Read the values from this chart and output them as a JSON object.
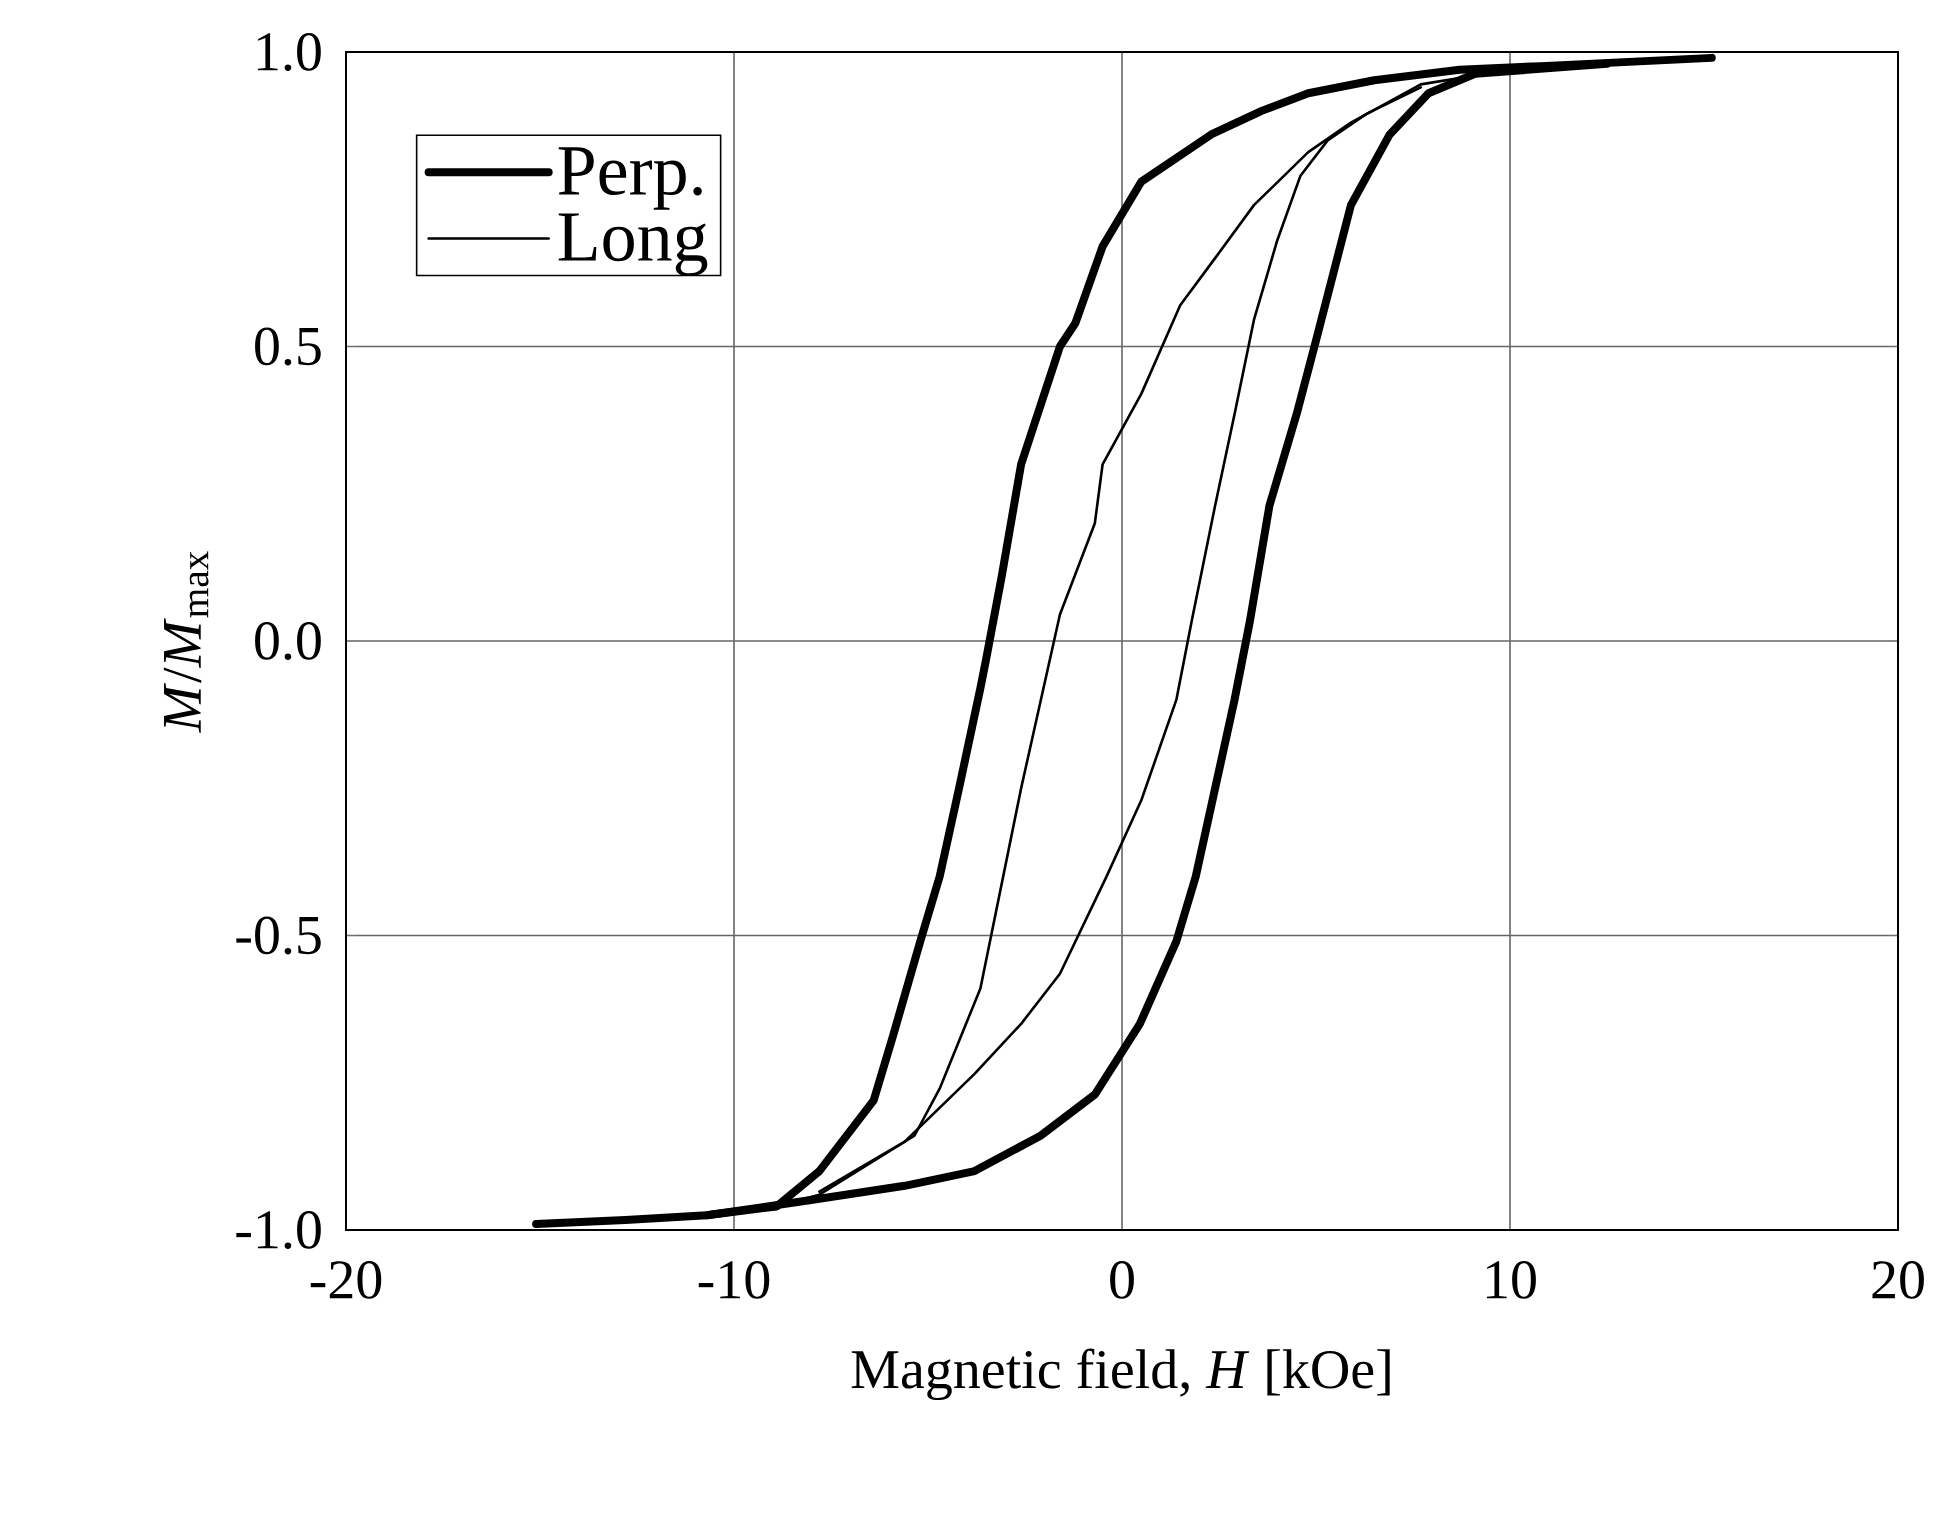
{
  "chart_data": {
    "type": "line",
    "xlabel": "Magnetic field, *H* [kOe]",
    "ylabel": "*M*/*M*$_{max}$",
    "xlim": [
      -20,
      20
    ],
    "ylim": [
      -1,
      1
    ],
    "xticks": [
      -20,
      -10,
      0,
      10,
      20
    ],
    "yticks": [
      {
        "value": -1,
        "label": "-1.0"
      },
      {
        "value": -0.5,
        "label": "-0.5"
      },
      {
        "value": 0,
        "label": "0.0"
      },
      {
        "value": 0.5,
        "label": "0.5"
      },
      {
        "value": 1,
        "label": "1.0"
      }
    ],
    "grid": true,
    "legend": "top left",
    "marker": "none",
    "line_style": "solid",
    "series": [
      {
        "name": "Perp.",
        "color": "#000000",
        "x": [
          -15.1,
          -12.8,
          -10.7,
          -8.9,
          -7.8,
          -6.4,
          -5.9,
          -5.2,
          -4.7,
          -4.2,
          -3.65,
          -3.5,
          -3.1,
          -2.6,
          -1.6,
          -1.2,
          -0.5,
          0.5,
          2.3,
          3.6,
          4.8,
          6.5,
          8.7,
          10.8,
          15.2
        ],
        "values": [
          -0.99,
          -0.983,
          -0.975,
          -0.96,
          -0.9,
          -0.78,
          -0.67,
          -0.51,
          -0.4,
          -0.25,
          -0.08,
          -0.03,
          0.11,
          0.3,
          0.5,
          0.54,
          0.67,
          0.78,
          0.86,
          0.9,
          0.93,
          0.952,
          0.97,
          0.976,
          0.99
        ]
      },
      {
        "color": "#000000",
        "x": [
          -10.7,
          -8.1,
          -5.6,
          -3.8,
          -2.1,
          -0.7,
          0.46,
          1.4,
          1.9,
          2.4,
          2.9,
          3.3,
          3.8,
          4.5,
          5.0,
          5.9,
          6.9,
          7.9,
          9.1,
          12.5
        ],
        "values": [
          -0.975,
          -0.95,
          -0.925,
          -0.9,
          -0.84,
          -0.77,
          -0.65,
          -0.51,
          -0.4,
          -0.25,
          -0.1,
          0.035,
          0.23,
          0.385,
          0.51,
          0.74,
          0.86,
          0.93,
          0.963,
          0.98
        ]
      },
      {
        "name": "Long",
        "color": "#000000",
        "x": [
          -8.9,
          -7.8,
          -5.35,
          -4.7,
          -3.65,
          -2.6,
          -1.6,
          -0.7,
          -0.5,
          0.5,
          1.5,
          2.4,
          3.4,
          4.8,
          5.9,
          7.7,
          9.1
        ],
        "values": [
          -0.96,
          -0.94,
          -0.84,
          -0.76,
          -0.59,
          -0.25,
          0.045,
          0.2,
          0.3,
          0.42,
          0.57,
          0.65,
          0.74,
          0.83,
          0.88,
          0.945,
          0.96
        ]
      },
      {
        "color": "#000000",
        "x": [
          -7.8,
          -5.6,
          -3.8,
          -2.6,
          -1.6,
          -0.4,
          0.5,
          1.4,
          1.8,
          2.4,
          2.9,
          3.4,
          4.0,
          4.6,
          5.3,
          6.3,
          7.7
        ],
        "values": [
          -0.935,
          -0.85,
          -0.735,
          -0.65,
          -0.565,
          -0.4,
          -0.27,
          -0.1,
          0.035,
          0.23,
          0.385,
          0.545,
          0.68,
          0.79,
          0.85,
          0.895,
          0.94
        ]
      }
    ]
  }
}
